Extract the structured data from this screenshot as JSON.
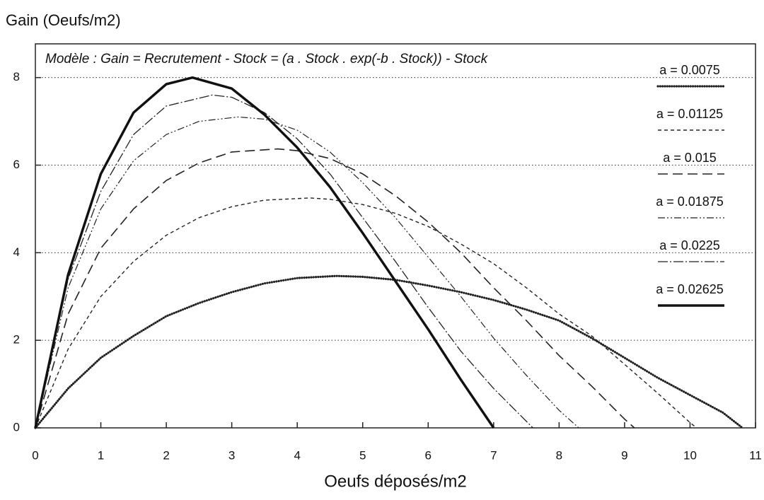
{
  "chart_data": {
    "type": "line",
    "ylabel": "Gain (Oeufs/m2)",
    "xlabel": "Oeufs déposés/m2",
    "annotation": "Modèle : Gain = Recrutement - Stock = (a . Stock . exp(-b . Stock)) - Stock",
    "xlim": [
      0,
      11
    ],
    "xticks": [
      0,
      1,
      2,
      3,
      4,
      5,
      6,
      7,
      8,
      9,
      10,
      11
    ],
    "ylim": [
      0,
      8.77
    ],
    "yticks": [
      0,
      2,
      4,
      6,
      8
    ],
    "grid": true,
    "legend": "upper right",
    "series": [
      {
        "name": "a = 0.0075",
        "color": "#222",
        "linestyle": "dotted",
        "x": [
          0,
          0.5,
          1,
          1.5,
          2,
          2.5,
          3,
          3.5,
          4,
          4.6,
          5,
          5.5,
          6,
          6.5,
          7,
          7.5,
          8,
          8.5,
          9,
          9.5,
          10,
          10.5,
          10.8
        ],
        "values": [
          0,
          0.9,
          1.6,
          2.1,
          2.55,
          2.85,
          3.1,
          3.3,
          3.42,
          3.47,
          3.45,
          3.38,
          3.25,
          3.1,
          2.92,
          2.7,
          2.45,
          2.05,
          1.6,
          1.15,
          0.75,
          0.35,
          0
        ]
      },
      {
        "name": "a = 0.01125",
        "color": "#222",
        "linestyle": "short-dash",
        "x": [
          0,
          0.5,
          1,
          1.5,
          2,
          2.5,
          3,
          3.5,
          4.2,
          4.5,
          5,
          5.5,
          6,
          6.5,
          7,
          7.5,
          8,
          8.5,
          9,
          9.5,
          10,
          10.1
        ],
        "values": [
          0,
          1.8,
          3.0,
          3.8,
          4.4,
          4.8,
          5.05,
          5.2,
          5.25,
          5.22,
          5.1,
          4.9,
          4.6,
          4.2,
          3.75,
          3.2,
          2.6,
          2.1,
          1.45,
          0.8,
          0.12,
          0
        ]
      },
      {
        "name": "a = 0.015",
        "color": "#222",
        "linestyle": "long-dash",
        "x": [
          0,
          0.5,
          1,
          1.5,
          2,
          2.5,
          3,
          3.7,
          4,
          4.5,
          5,
          5.5,
          6,
          6.5,
          7,
          7.5,
          8,
          8.5,
          9,
          9.15
        ],
        "values": [
          0,
          2.6,
          4.1,
          5.0,
          5.65,
          6.05,
          6.3,
          6.37,
          6.33,
          6.15,
          5.8,
          5.3,
          4.7,
          4.0,
          3.2,
          2.45,
          1.65,
          0.95,
          0.2,
          0
        ]
      },
      {
        "name": "a = 0.01875",
        "color": "#222",
        "linestyle": "dash-dot-dot",
        "x": [
          0,
          0.5,
          1,
          1.5,
          2,
          2.5,
          3.1,
          3.5,
          4,
          4.5,
          5,
          5.5,
          6,
          6.5,
          7,
          7.5,
          8,
          8.3
        ],
        "values": [
          0,
          3.2,
          5.0,
          6.1,
          6.7,
          7.0,
          7.1,
          7.05,
          6.8,
          6.3,
          5.6,
          4.8,
          3.9,
          3.0,
          2.05,
          1.2,
          0.4,
          0
        ]
      },
      {
        "name": "a = 0.0225",
        "color": "#222",
        "linestyle": "dash-dot",
        "x": [
          0,
          0.5,
          1,
          1.5,
          2,
          2.7,
          3,
          3.5,
          4,
          4.5,
          5,
          5.5,
          6,
          6.5,
          7,
          7.6
        ],
        "values": [
          0,
          3.4,
          5.4,
          6.7,
          7.35,
          7.6,
          7.55,
          7.2,
          6.6,
          5.8,
          4.8,
          3.8,
          2.75,
          1.75,
          0.9,
          0
        ]
      },
      {
        "name": "a = 0.02625",
        "color": "#111",
        "linestyle": "thick",
        "x": [
          0,
          0.5,
          1,
          1.5,
          2,
          2.4,
          3,
          3.5,
          4,
          4.5,
          5,
          5.5,
          6,
          6.5,
          7
        ],
        "values": [
          0,
          3.5,
          5.8,
          7.2,
          7.85,
          8.0,
          7.75,
          7.15,
          6.4,
          5.5,
          4.45,
          3.35,
          2.25,
          1.1,
          0
        ]
      }
    ]
  }
}
